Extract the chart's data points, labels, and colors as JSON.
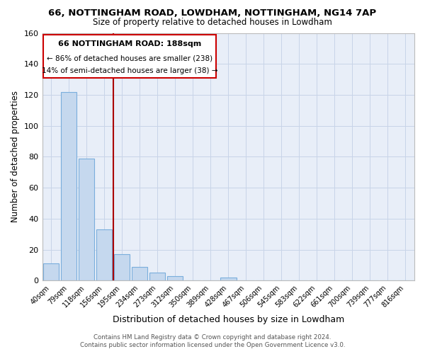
{
  "title": "66, NOTTINGHAM ROAD, LOWDHAM, NOTTINGHAM, NG14 7AP",
  "subtitle": "Size of property relative to detached houses in Lowdham",
  "xlabel": "Distribution of detached houses by size in Lowdham",
  "ylabel": "Number of detached properties",
  "footer_line1": "Contains HM Land Registry data © Crown copyright and database right 2024.",
  "footer_line2": "Contains public sector information licensed under the Open Government Licence v3.0.",
  "annotation_line1": "66 NOTTINGHAM ROAD: 188sqm",
  "annotation_line2": "← 86% of detached houses are smaller (238)",
  "annotation_line3": "14% of semi-detached houses are larger (38) →",
  "categories": [
    "40sqm",
    "79sqm",
    "118sqm",
    "156sqm",
    "195sqm",
    "234sqm",
    "273sqm",
    "312sqm",
    "350sqm",
    "389sqm",
    "428sqm",
    "467sqm",
    "506sqm",
    "545sqm",
    "583sqm",
    "622sqm",
    "661sqm",
    "700sqm",
    "739sqm",
    "777sqm",
    "816sqm"
  ],
  "values": [
    11,
    122,
    79,
    33,
    17,
    9,
    5,
    3,
    0,
    0,
    2,
    0,
    0,
    0,
    0,
    0,
    0,
    0,
    0,
    0,
    0
  ],
  "bar_color": "#c5d8ee",
  "bar_edge_color": "#7aaedc",
  "vline_color": "#aa0000",
  "vline_x": 3.5,
  "annotation_box_color": "#ffffff",
  "annotation_box_edge": "#cc0000",
  "background_color": "#ffffff",
  "plot_bg_color": "#e8eef8",
  "grid_color": "#c8d4e8",
  "ylim": [
    0,
    160
  ],
  "yticks": [
    0,
    20,
    40,
    60,
    80,
    100,
    120,
    140,
    160
  ]
}
